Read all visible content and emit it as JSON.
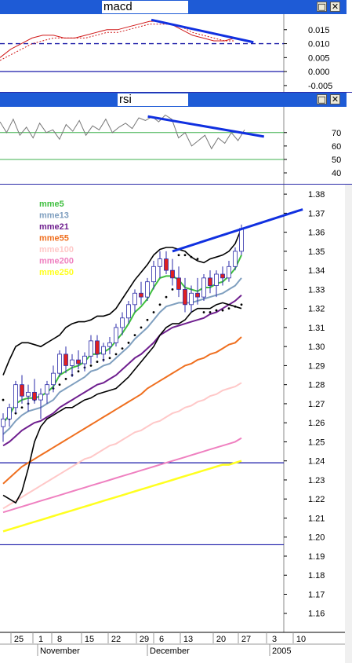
{
  "windows": {
    "macd": {
      "title": "macd",
      "maximize_icon": "window-maximize-icon",
      "close_icon": "close-x-icon"
    },
    "rsi": {
      "title": "rsi",
      "maximize_icon": "window-maximize-icon",
      "close_icon": "close-x-icon"
    }
  },
  "colors": {
    "titlebar": "#1e5bd6",
    "trendline": "#1030e0",
    "refline": "#1a1aa8",
    "rsi_level": "#3fb04f",
    "up_candle": "#ffffff",
    "down_candle": "#e02020",
    "bollinger": "#000000",
    "sar_dots": "#000000"
  },
  "chart_data": [
    {
      "type": "line",
      "name": "macd",
      "title": "macd",
      "y_ticks": [
        "0.015",
        "0.010",
        "0.005",
        "0.000",
        "-0.005"
      ],
      "ylim": [
        -0.007,
        0.02
      ],
      "reference_line": 0.01,
      "zero_line": 0.0,
      "series": [
        {
          "style": "solid-red",
          "values": [
            0.005,
            0.008,
            0.01,
            0.012,
            0.013,
            0.013,
            0.012,
            0.012,
            0.013,
            0.014,
            0.015,
            0.015,
            0.016,
            0.017,
            0.018,
            0.018,
            0.017,
            0.015,
            0.013,
            0.012,
            0.011,
            0.011,
            0.012
          ]
        },
        {
          "style": "dotted-red",
          "values": [
            0.004,
            0.006,
            0.008,
            0.01,
            0.011,
            0.012,
            0.012,
            0.012,
            0.012,
            0.013,
            0.014,
            0.014,
            0.015,
            0.016,
            0.017,
            0.017,
            0.017,
            0.016,
            0.014,
            0.013,
            0.012,
            0.011,
            0.011
          ]
        }
      ],
      "trendline": {
        "from": [
          0.43,
          0.0185
        ],
        "to": [
          0.72,
          0.0105
        ]
      }
    },
    {
      "type": "line",
      "name": "rsi",
      "title": "rsi",
      "y_ticks": [
        "70",
        "60",
        "50",
        "40"
      ],
      "ylim": [
        33,
        88
      ],
      "levels": [
        70,
        50
      ],
      "series": [
        {
          "style": "gray",
          "values": [
            78,
            70,
            80,
            68,
            74,
            66,
            77,
            70,
            72,
            65,
            76,
            71,
            79,
            68,
            75,
            72,
            80,
            70,
            74,
            77,
            73,
            81,
            79,
            82,
            78,
            83,
            80,
            66,
            70,
            60,
            64,
            68,
            58,
            66,
            62,
            70,
            64,
            72
          ]
        }
      ],
      "trendline": {
        "from": [
          0.42,
          82
        ],
        "to": [
          0.75,
          67
        ]
      }
    },
    {
      "type": "candlestick",
      "name": "price",
      "y_ticks": [
        "1.38",
        "1.37",
        "1.36",
        "1.35",
        "1.34",
        "1.33",
        "1.32",
        "1.31",
        "1.30",
        "1.29",
        "1.28",
        "1.27",
        "1.26",
        "1.25",
        "1.24",
        "1.23",
        "1.22",
        "1.21",
        "1.20",
        "1.19",
        "1.18",
        "1.17",
        "1.16"
      ],
      "ylim": [
        1.15,
        1.385
      ],
      "x_ticks": [
        "25",
        "1",
        "8",
        "15",
        "22",
        "29",
        "6",
        "13",
        "20",
        "27",
        "3",
        "10"
      ],
      "months": [
        "November",
        "December",
        "2005"
      ],
      "legend": [
        {
          "label": "mme5",
          "color": "#3fbf3f"
        },
        {
          "label": "mme13",
          "color": "#7f9fbf"
        },
        {
          "label": "mme21",
          "color": "#6f1f8f"
        },
        {
          "label": "mme55",
          "color": "#ef6f1f"
        },
        {
          "label": "mme100",
          "color": "#ffc8c8"
        },
        {
          "label": "mme200",
          "color": "#ef80c0"
        },
        {
          "label": "mme250",
          "color": "#ffff20"
        }
      ],
      "horizontal_lines": [
        1.239,
        1.196
      ],
      "candles": [
        [
          1.258,
          1.265,
          1.25,
          1.262
        ],
        [
          1.262,
          1.27,
          1.258,
          1.268
        ],
        [
          1.268,
          1.282,
          1.265,
          1.28
        ],
        [
          1.28,
          1.285,
          1.27,
          1.274
        ],
        [
          1.274,
          1.28,
          1.266,
          1.276
        ],
        [
          1.276,
          1.283,
          1.27,
          1.272
        ],
        [
          1.272,
          1.278,
          1.262,
          1.275
        ],
        [
          1.275,
          1.282,
          1.27,
          1.28
        ],
        [
          1.28,
          1.29,
          1.276,
          1.286
        ],
        [
          1.286,
          1.298,
          1.284,
          1.296
        ],
        [
          1.296,
          1.3,
          1.286,
          1.29
        ],
        [
          1.29,
          1.296,
          1.284,
          1.293
        ],
        [
          1.293,
          1.298,
          1.288,
          1.291
        ],
        [
          1.291,
          1.297,
          1.287,
          1.295
        ],
        [
          1.295,
          1.306,
          1.291,
          1.303
        ],
        [
          1.303,
          1.306,
          1.294,
          1.296
        ],
        [
          1.296,
          1.302,
          1.292,
          1.3
        ],
        [
          1.3,
          1.305,
          1.296,
          1.302
        ],
        [
          1.302,
          1.312,
          1.3,
          1.31
        ],
        [
          1.31,
          1.318,
          1.306,
          1.315
        ],
        [
          1.315,
          1.324,
          1.312,
          1.322
        ],
        [
          1.322,
          1.33,
          1.318,
          1.328
        ],
        [
          1.328,
          1.334,
          1.322,
          1.326
        ],
        [
          1.326,
          1.336,
          1.324,
          1.334
        ],
        [
          1.334,
          1.345,
          1.33,
          1.342
        ],
        [
          1.342,
          1.35,
          1.336,
          1.346
        ],
        [
          1.346,
          1.35,
          1.338,
          1.34
        ],
        [
          1.34,
          1.346,
          1.332,
          1.336
        ],
        [
          1.336,
          1.342,
          1.326,
          1.33
        ],
        [
          1.33,
          1.336,
          1.318,
          1.322
        ],
        [
          1.322,
          1.332,
          1.318,
          1.328
        ],
        [
          1.328,
          1.336,
          1.322,
          1.326
        ],
        [
          1.326,
          1.338,
          1.324,
          1.336
        ],
        [
          1.336,
          1.34,
          1.328,
          1.332
        ],
        [
          1.332,
          1.34,
          1.326,
          1.338
        ],
        [
          1.338,
          1.342,
          1.332,
          1.336
        ],
        [
          1.336,
          1.345,
          1.334,
          1.342
        ],
        [
          1.342,
          1.352,
          1.34,
          1.35
        ],
        [
          1.35,
          1.364,
          1.348,
          1.362
        ]
      ],
      "bollinger_upper": [
        1.285,
        1.293,
        1.3,
        1.302,
        1.302,
        1.301,
        1.3,
        1.302,
        1.304,
        1.306,
        1.31,
        1.312,
        1.313,
        1.313,
        1.314,
        1.316,
        1.316,
        1.317,
        1.32,
        1.325,
        1.33,
        1.335,
        1.339,
        1.343,
        1.348,
        1.351,
        1.352,
        1.352,
        1.351,
        1.35,
        1.347,
        1.345,
        1.344,
        1.346,
        1.347,
        1.348,
        1.35,
        1.354,
        1.362
      ],
      "bollinger_lower": [
        1.222,
        1.22,
        1.218,
        1.224,
        1.236,
        1.25,
        1.258,
        1.262,
        1.264,
        1.266,
        1.268,
        1.268,
        1.27,
        1.272,
        1.273,
        1.275,
        1.276,
        1.277,
        1.278,
        1.281,
        1.284,
        1.288,
        1.292,
        1.296,
        1.3,
        1.306,
        1.31,
        1.312,
        1.312,
        1.314,
        1.318,
        1.32,
        1.32,
        1.32,
        1.322,
        1.323,
        1.322,
        1.321,
        1.32
      ],
      "mme5": [
        1.26,
        1.264,
        1.27,
        1.272,
        1.273,
        1.273,
        1.274,
        1.276,
        1.279,
        1.285,
        1.287,
        1.289,
        1.29,
        1.292,
        1.296,
        1.296,
        1.297,
        1.299,
        1.303,
        1.307,
        1.312,
        1.318,
        1.321,
        1.325,
        1.331,
        1.336,
        1.337,
        1.337,
        1.335,
        1.331,
        1.33,
        1.329,
        1.331,
        1.331,
        1.333,
        1.334,
        1.337,
        1.341,
        1.348
      ],
      "mme13": [
        1.254,
        1.257,
        1.261,
        1.264,
        1.266,
        1.267,
        1.268,
        1.27,
        1.272,
        1.276,
        1.278,
        1.28,
        1.282,
        1.284,
        1.287,
        1.288,
        1.29,
        1.291,
        1.294,
        1.297,
        1.3,
        1.304,
        1.307,
        1.31,
        1.314,
        1.318,
        1.321,
        1.322,
        1.323,
        1.323,
        1.323,
        1.324,
        1.325,
        1.326,
        1.327,
        1.328,
        1.33,
        1.332,
        1.336
      ],
      "mme21": [
        1.248,
        1.25,
        1.253,
        1.256,
        1.258,
        1.26,
        1.261,
        1.263,
        1.265,
        1.268,
        1.27,
        1.272,
        1.274,
        1.276,
        1.278,
        1.28,
        1.281,
        1.283,
        1.285,
        1.288,
        1.291,
        1.294,
        1.296,
        1.299,
        1.302,
        1.306,
        1.308,
        1.31,
        1.311,
        1.312,
        1.313,
        1.314,
        1.315,
        1.317,
        1.318,
        1.32,
        1.322,
        1.324,
        1.327
      ],
      "mme55": [
        1.228,
        1.231,
        1.234,
        1.237,
        1.239,
        1.241,
        1.243,
        1.245,
        1.247,
        1.249,
        1.251,
        1.253,
        1.255,
        1.257,
        1.259,
        1.261,
        1.263,
        1.265,
        1.267,
        1.269,
        1.271,
        1.273,
        1.275,
        1.278,
        1.28,
        1.282,
        1.284,
        1.286,
        1.288,
        1.29,
        1.291,
        1.293,
        1.294,
        1.296,
        1.297,
        1.299,
        1.301,
        1.302,
        1.305
      ],
      "mme100": [
        1.215,
        1.217,
        1.219,
        1.221,
        1.223,
        1.225,
        1.227,
        1.229,
        1.231,
        1.233,
        1.235,
        1.237,
        1.239,
        1.241,
        1.242,
        1.244,
        1.246,
        1.248,
        1.249,
        1.251,
        1.253,
        1.255,
        1.256,
        1.258,
        1.26,
        1.261,
        1.263,
        1.265,
        1.266,
        1.268,
        1.269,
        1.271,
        1.272,
        1.274,
        1.275,
        1.277,
        1.278,
        1.279,
        1.281
      ],
      "mme200": [
        1.213,
        1.214,
        1.215,
        1.216,
        1.217,
        1.218,
        1.219,
        1.22,
        1.221,
        1.222,
        1.223,
        1.224,
        1.225,
        1.226,
        1.227,
        1.228,
        1.229,
        1.23,
        1.231,
        1.232,
        1.233,
        1.234,
        1.235,
        1.236,
        1.237,
        1.238,
        1.239,
        1.24,
        1.241,
        1.242,
        1.243,
        1.244,
        1.245,
        1.246,
        1.247,
        1.248,
        1.249,
        1.25,
        1.252
      ],
      "mme250": [
        1.203,
        1.204,
        1.205,
        1.206,
        1.207,
        1.208,
        1.209,
        1.21,
        1.211,
        1.212,
        1.213,
        1.214,
        1.215,
        1.216,
        1.217,
        1.218,
        1.219,
        1.22,
        1.221,
        1.222,
        1.223,
        1.224,
        1.225,
        1.226,
        1.227,
        1.228,
        1.229,
        1.23,
        1.231,
        1.232,
        1.233,
        1.234,
        1.235,
        1.236,
        1.237,
        1.238,
        1.238,
        1.239,
        1.24
      ],
      "sar_dots": [
        1.272,
        1.262,
        1.265,
        1.268,
        1.27,
        1.272,
        1.274,
        1.276,
        1.278,
        1.28,
        1.283,
        1.285,
        1.287,
        1.289,
        1.29,
        1.292,
        1.293,
        1.294,
        1.296,
        1.299,
        1.302,
        1.306,
        1.31,
        1.314,
        1.318,
        1.322,
        1.326,
        1.33,
        1.348,
        1.348,
        1.347,
        1.346,
        1.318,
        1.318,
        1.319,
        1.319,
        1.32,
        1.321,
        1.322
      ],
      "trendline": {
        "from": [
          0.49,
          1.35
        ],
        "to": [
          0.86,
          1.372
        ]
      }
    }
  ]
}
